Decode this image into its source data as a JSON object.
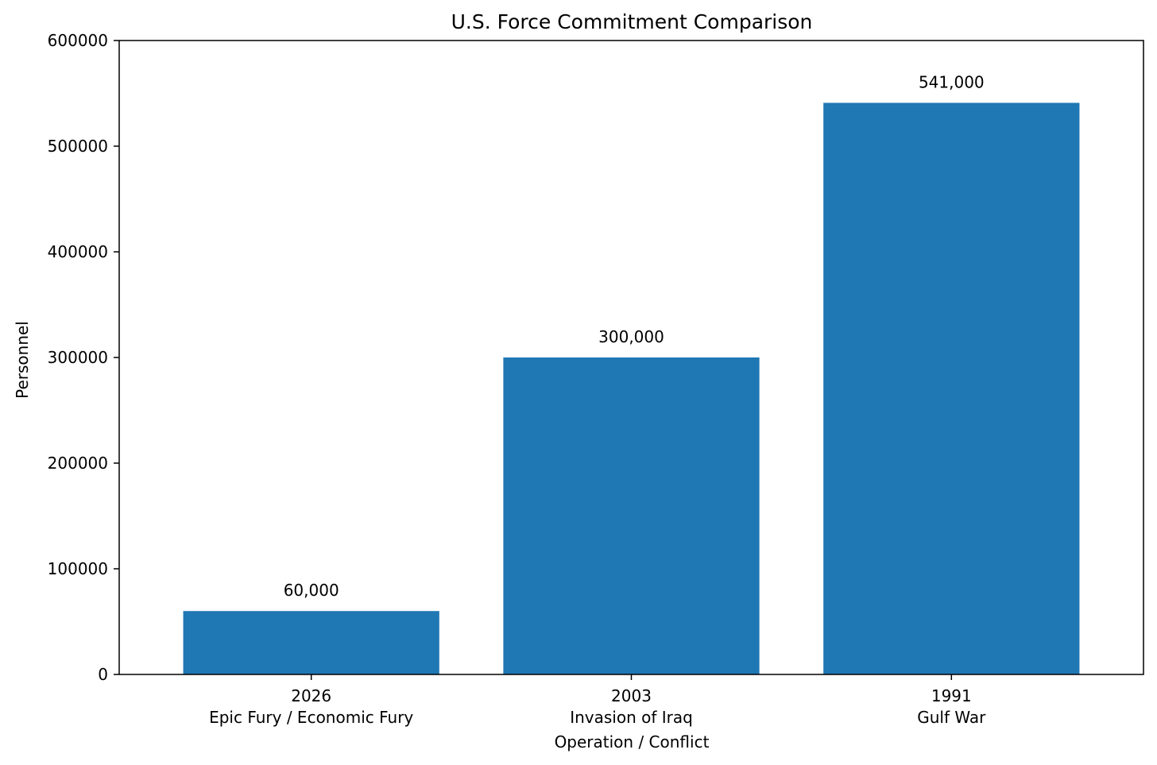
{
  "chart_data": {
    "type": "bar",
    "title": "U.S. Force Commitment Comparison",
    "xlabel": "Operation / Conflict",
    "ylabel": "Personnel",
    "categories": [
      {
        "year": "2026",
        "name": "Epic Fury / Economic Fury"
      },
      {
        "year": "2003",
        "name": "Invasion of Iraq"
      },
      {
        "year": "1991",
        "name": "Gulf War"
      }
    ],
    "values": [
      60000,
      300000,
      541000
    ],
    "data_labels": [
      "60,000",
      "300,000",
      "541,000"
    ],
    "ylim": [
      0,
      600000
    ],
    "yticks": [
      0,
      100000,
      200000,
      300000,
      400000,
      500000,
      600000
    ],
    "ytick_labels": [
      "0",
      "100000",
      "200000",
      "300000",
      "400000",
      "500000",
      "600000"
    ],
    "bar_color": "#1f77b4",
    "grid": false,
    "legend": "none"
  }
}
